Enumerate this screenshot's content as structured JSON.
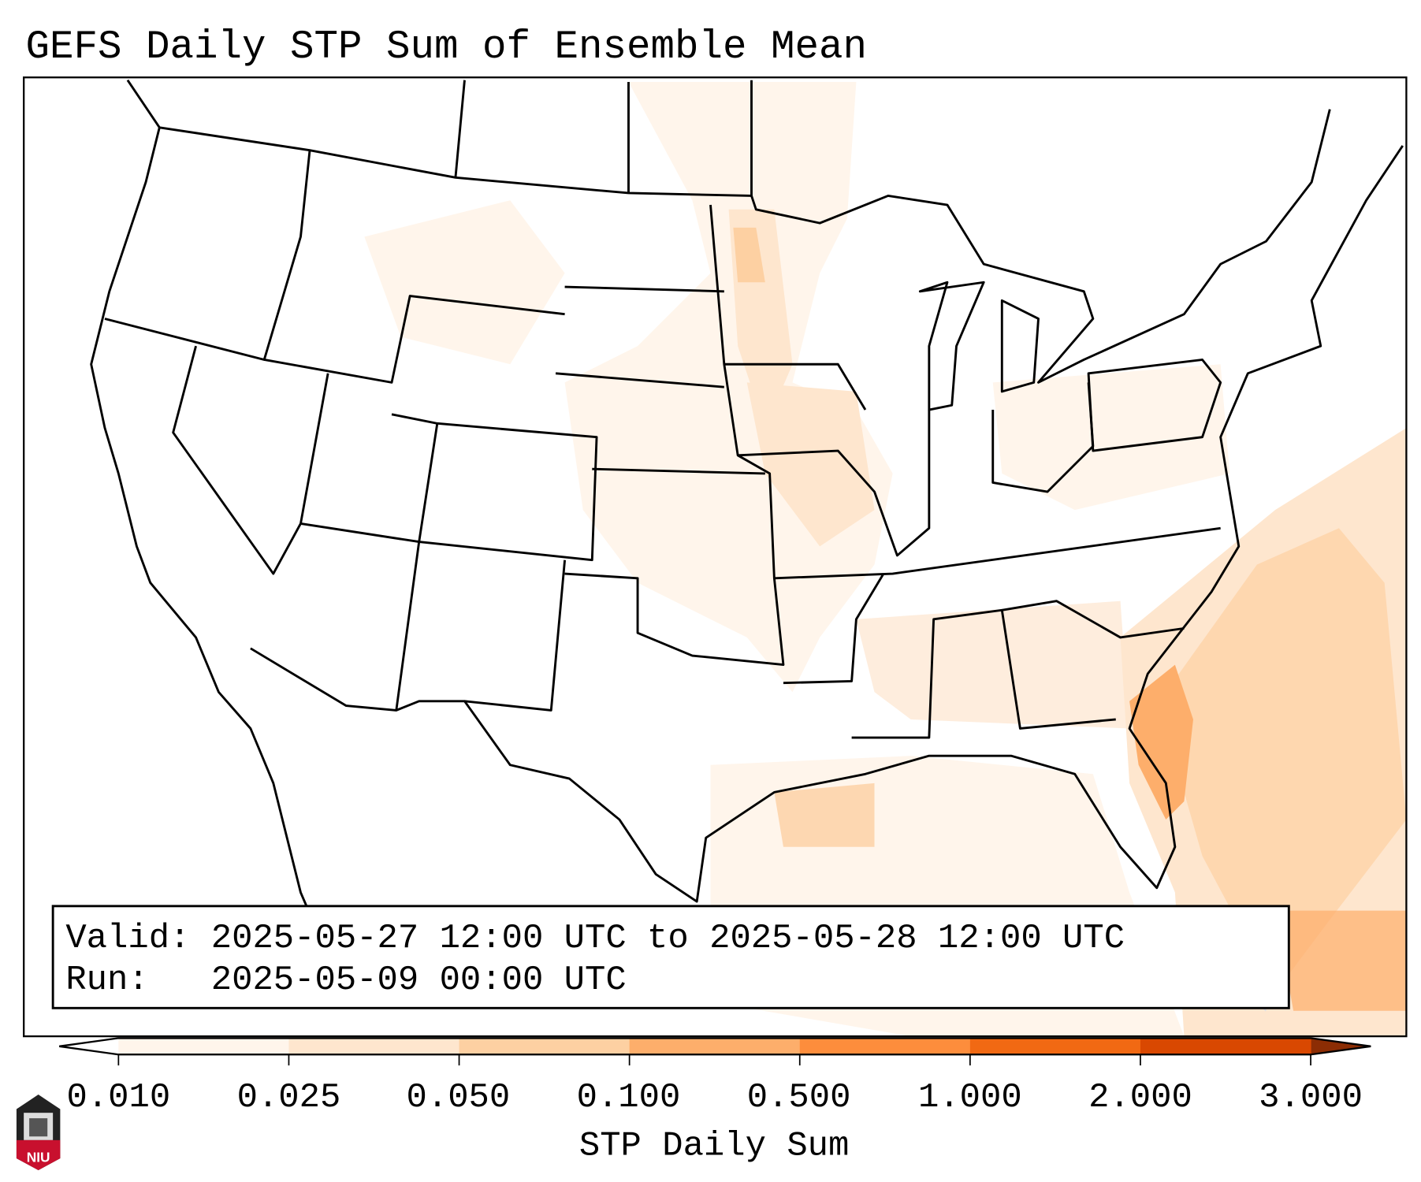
{
  "title": "GEFS Daily STP Sum of Ensemble Mean",
  "info": {
    "valid_line": "Valid: 2025-05-27 12:00 UTC to 2025-05-28 12:00 UTC",
    "run_line": "Run:   2025-05-09 00:00 UTC"
  },
  "colorbar": {
    "label": "STP Daily Sum",
    "ticks": [
      "0.010",
      "0.025",
      "0.050",
      "0.100",
      "0.500",
      "1.000",
      "2.000",
      "3.000"
    ],
    "colors": [
      "#fff5eb",
      "#fee6ce",
      "#fdd0a2",
      "#fdae6b",
      "#fd8d3c",
      "#f16913",
      "#d94801"
    ],
    "under_color": "#ffffff",
    "over_color": "#8c2d04"
  },
  "logo": {
    "text": "NIU"
  }
}
